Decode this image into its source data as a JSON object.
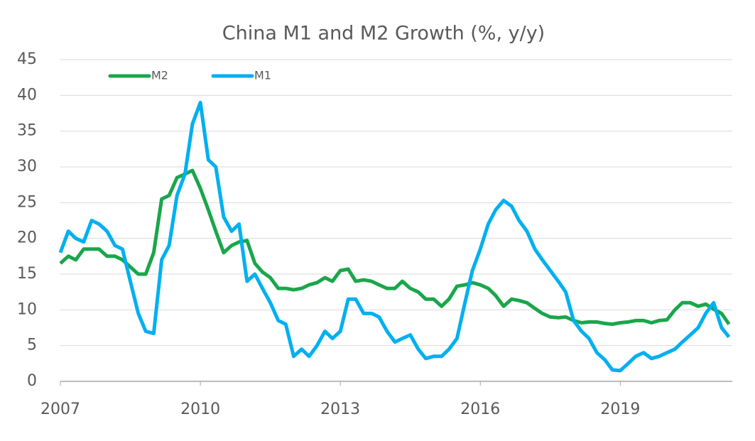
{
  "chart_data": {
    "type": "line",
    "title": "China M1 and M2 Growth (%, y/y)",
    "x": [
      2007,
      2007.17,
      2007.33,
      2007.5,
      2007.67,
      2007.83,
      2008,
      2008.17,
      2008.33,
      2008.5,
      2008.67,
      2008.83,
      2009,
      2009.17,
      2009.33,
      2009.5,
      2009.67,
      2009.83,
      2010,
      2010.17,
      2010.33,
      2010.5,
      2010.67,
      2010.83,
      2011,
      2011.17,
      2011.33,
      2011.5,
      2011.67,
      2011.83,
      2012,
      2012.17,
      2012.33,
      2012.5,
      2012.67,
      2012.83,
      2013,
      2013.17,
      2013.33,
      2013.5,
      2013.67,
      2013.83,
      2014,
      2014.17,
      2014.33,
      2014.5,
      2014.67,
      2014.83,
      2015,
      2015.17,
      2015.33,
      2015.5,
      2015.67,
      2015.83,
      2016,
      2016.17,
      2016.33,
      2016.5,
      2016.67,
      2016.83,
      2017,
      2017.17,
      2017.33,
      2017.5,
      2017.67,
      2017.83,
      2018,
      2018.17,
      2018.33,
      2018.5,
      2018.67,
      2018.83,
      2019,
      2019.17,
      2019.33,
      2019.5,
      2019.67,
      2019.83,
      2020,
      2020.17,
      2020.33,
      2020.5,
      2020.67,
      2020.83,
      2021,
      2021.17,
      2021.33
    ],
    "series": [
      {
        "name": "M2",
        "color": "#1aa64b",
        "values": [
          16.5,
          17.5,
          17,
          18.5,
          18.5,
          18.5,
          17.5,
          17.5,
          17,
          16,
          15,
          15,
          18,
          25.5,
          26,
          28.5,
          29,
          29.5,
          27,
          24,
          21,
          18,
          19,
          19.5,
          19.7,
          16.5,
          15.3,
          14.5,
          13,
          13,
          12.8,
          13,
          13.5,
          13.8,
          14.5,
          14,
          15.5,
          15.7,
          14,
          14.2,
          14,
          13.5,
          13,
          13,
          14,
          13,
          12.5,
          11.5,
          11.5,
          10.5,
          11.5,
          13.3,
          13.5,
          13.8,
          13.5,
          13,
          12,
          10.5,
          11.5,
          11.3,
          11,
          10.2,
          9.5,
          9,
          8.9,
          9,
          8.5,
          8.2,
          8.3,
          8.3,
          8.1,
          8,
          8.2,
          8.3,
          8.5,
          8.5,
          8.2,
          8.5,
          8.6,
          10,
          11,
          11,
          10.5,
          10.8,
          10.1,
          9.5,
          8
        ]
      },
      {
        "name": "M1",
        "color": "#00b0f0",
        "values": [
          18,
          21,
          20,
          19.5,
          22.5,
          22,
          21,
          19,
          18.5,
          14,
          9.5,
          7,
          6.7,
          17,
          19,
          26,
          29,
          36,
          39,
          31,
          30,
          23,
          21,
          22,
          14,
          15,
          13,
          11,
          8.5,
          8,
          3.5,
          4.5,
          3.5,
          5,
          7,
          6,
          7,
          11.5,
          11.5,
          9.5,
          9.5,
          9,
          7,
          5.5,
          6,
          6.5,
          4.5,
          3.2,
          3.5,
          3.5,
          4.5,
          6,
          11,
          15.5,
          18.5,
          22,
          24,
          25.3,
          24.5,
          22.5,
          21,
          18.5,
          17,
          15.5,
          14,
          12.5,
          8.5,
          7,
          6,
          4,
          3,
          1.6,
          1.5,
          2.5,
          3.5,
          4,
          3.2,
          3.5,
          4,
          4.5,
          5.5,
          6.5,
          7.5,
          9.5,
          11,
          7.5,
          6.2
        ]
      }
    ],
    "xlim": [
      2007,
      2021.4
    ],
    "xticks": [
      2007,
      2010,
      2013,
      2016,
      2019
    ],
    "ylim": [
      0,
      45
    ],
    "yticks": [
      0,
      5,
      10,
      15,
      20,
      25,
      30,
      35,
      40,
      45
    ],
    "grid": true
  }
}
